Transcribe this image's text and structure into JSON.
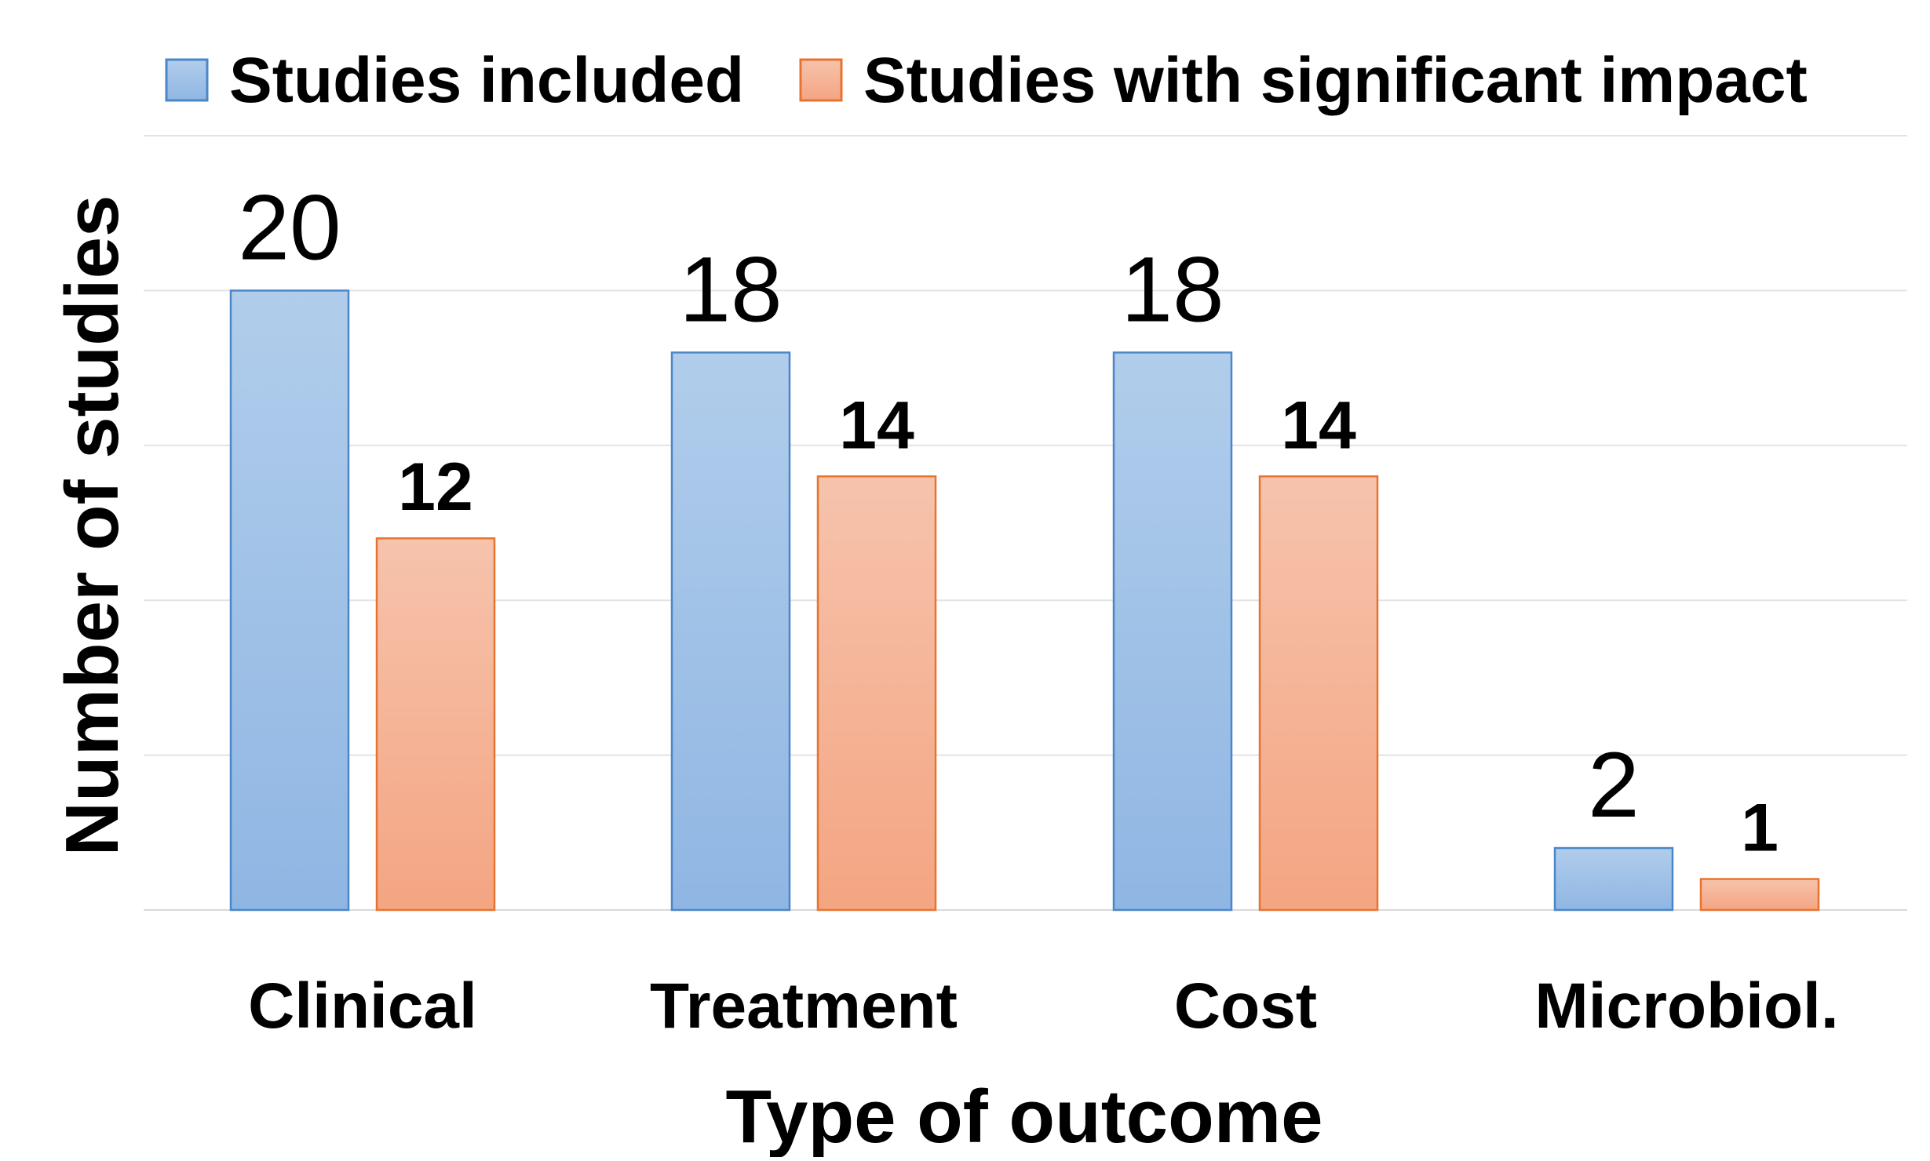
{
  "chart_data": {
    "type": "bar",
    "categories": [
      "Clinical",
      "Treatment",
      "Cost",
      "Microbiol."
    ],
    "series": [
      {
        "name": "Studies included",
        "values": [
          20,
          18,
          18,
          2
        ],
        "color": "#9DC0E6",
        "border_color": "#4A86C8"
      },
      {
        "name": "Studies with significant impact",
        "values": [
          12,
          14,
          14,
          1
        ],
        "color": "#F5AF92",
        "border_color": "#E8732F"
      }
    ],
    "data_labels": [
      [
        "20",
        "18",
        "18",
        "2"
      ],
      [
        "12",
        "14",
        "14",
        "1"
      ]
    ],
    "xlabel": "Type of outcome",
    "ylabel": "Number of studies",
    "ylim": [
      0,
      25
    ],
    "y_grid_step": 5,
    "grid": true,
    "y_tick_labels_shown": false,
    "legend_position": "top"
  }
}
